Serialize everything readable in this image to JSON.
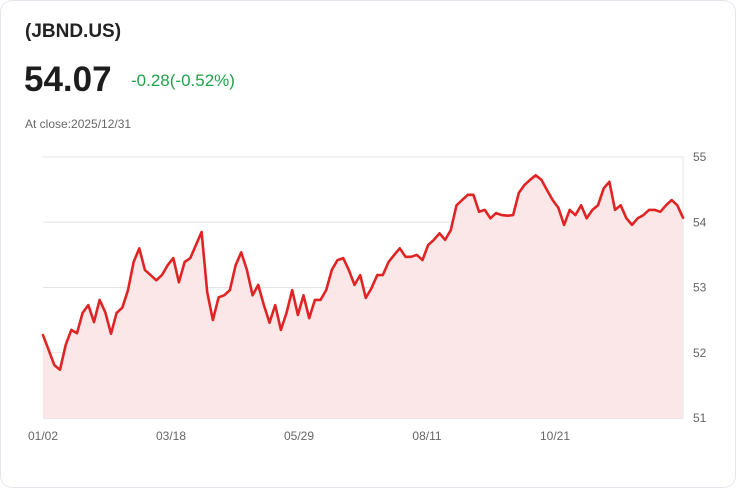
{
  "header": {
    "ticker": "(JBND.US)",
    "price": "54.07",
    "change": "-0.28(-0.52%)",
    "close_label": "At close:2025/12/31"
  },
  "colors": {
    "line": "#e02424",
    "fill": "#fbe7e8",
    "positive": "#1fa34a"
  },
  "chart_data": {
    "type": "area",
    "title": "(JBND.US)",
    "xlabel": "",
    "ylabel": "",
    "ylim": [
      51,
      55
    ],
    "yticks": [
      "55",
      "54",
      "53",
      "52",
      "51"
    ],
    "xticks": [
      {
        "label": "01/02",
        "pos": 0
      },
      {
        "label": "03/18",
        "pos": 0.2
      },
      {
        "label": "05/29",
        "pos": 0.4
      },
      {
        "label": "08/11",
        "pos": 0.6
      },
      {
        "label": "10/21",
        "pos": 0.8
      }
    ],
    "grid": true,
    "values": [
      52.27,
      52.04,
      51.81,
      51.74,
      52.12,
      52.35,
      52.3,
      52.61,
      52.73,
      52.47,
      52.81,
      52.62,
      52.29,
      52.61,
      52.69,
      52.96,
      53.39,
      53.6,
      53.27,
      53.19,
      53.11,
      53.19,
      53.34,
      53.45,
      53.08,
      53.39,
      53.45,
      53.65,
      53.85,
      52.93,
      52.5,
      52.85,
      52.88,
      52.96,
      53.34,
      53.54,
      53.27,
      52.88,
      53.04,
      52.73,
      52.46,
      52.73,
      52.35,
      52.61,
      52.96,
      52.58,
      52.88,
      52.53,
      52.81,
      52.81,
      52.96,
      53.27,
      53.42,
      53.45,
      53.27,
      53.04,
      53.19,
      52.84,
      52.99,
      53.19,
      53.19,
      53.39,
      53.5,
      53.6,
      53.47,
      53.47,
      53.5,
      53.42,
      53.65,
      53.73,
      53.83,
      53.73,
      53.88,
      54.26,
      54.34,
      54.42,
      54.42,
      54.16,
      54.19,
      54.06,
      54.14,
      54.11,
      54.1,
      54.11,
      54.45,
      54.57,
      54.65,
      54.72,
      54.65,
      54.49,
      54.34,
      54.22,
      53.96,
      54.19,
      54.11,
      54.26,
      54.06,
      54.19,
      54.26,
      54.52,
      54.62,
      54.19,
      54.26,
      54.06,
      53.96,
      54.06,
      54.11,
      54.19,
      54.19,
      54.16,
      54.26,
      54.34,
      54.26,
      54.07
    ]
  }
}
